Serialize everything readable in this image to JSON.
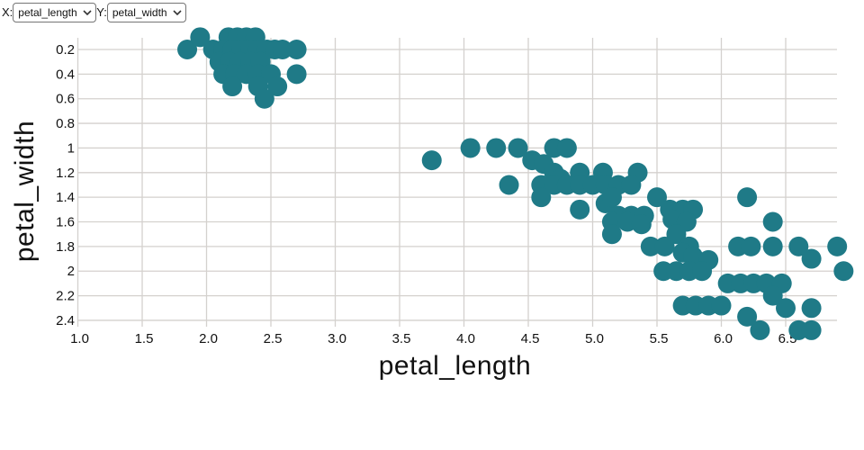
{
  "controls": {
    "x_label": "X:",
    "y_label": "Y:",
    "x_select": {
      "value": "petal_length"
    },
    "y_select": {
      "value": "petal_width"
    }
  },
  "chart_data": {
    "type": "scatter",
    "xlabel": "petal_length",
    "ylabel": "petal_width",
    "x_tick_values": [
      1.0,
      1.5,
      2.0,
      2.5,
      3.0,
      3.5,
      4.0,
      4.5,
      5.0,
      5.5,
      6.0,
      6.5
    ],
    "x_tick_labels": [
      "1.0",
      "1.5",
      "2.0",
      "2.5",
      "3.0",
      "3.5",
      "4.0",
      "4.5",
      "5.0",
      "5.5",
      "6.0",
      "6.5"
    ],
    "y_tick_values": [
      0.2,
      0.4,
      0.6,
      0.8,
      1.0,
      1.2,
      1.4,
      1.6,
      1.8,
      2.0,
      2.2,
      2.4
    ],
    "y_tick_labels": [
      "0.2",
      "0.4",
      "0.6",
      "0.8",
      "1",
      "1.2",
      "1.4",
      "1.6",
      "1.8",
      "2",
      "2.2",
      "2.4"
    ],
    "x_range": [
      1.0,
      6.95
    ],
    "y_range": [
      0.1,
      2.5
    ],
    "y_axis_inverted": true,
    "grid_on": true,
    "legend": "none",
    "marker_color": "#1f7a87",
    "grid_color": "#d4d1ce",
    "text_color": "#111111",
    "marker_radius_px": 11,
    "points": [
      [
        1.95,
        0.1
      ],
      [
        2.17,
        0.1
      ],
      [
        2.24,
        0.1
      ],
      [
        2.31,
        0.1
      ],
      [
        2.38,
        0.1
      ],
      [
        1.85,
        0.2
      ],
      [
        2.05,
        0.2
      ],
      [
        2.13,
        0.2
      ],
      [
        2.2,
        0.2
      ],
      [
        2.27,
        0.2
      ],
      [
        2.34,
        0.2
      ],
      [
        2.4,
        0.2
      ],
      [
        2.47,
        0.2
      ],
      [
        2.53,
        0.2
      ],
      [
        2.59,
        0.2
      ],
      [
        2.7,
        0.2
      ],
      [
        2.1,
        0.3
      ],
      [
        2.18,
        0.3
      ],
      [
        2.26,
        0.3
      ],
      [
        2.34,
        0.3
      ],
      [
        2.42,
        0.3
      ],
      [
        2.13,
        0.4
      ],
      [
        2.22,
        0.4
      ],
      [
        2.31,
        0.4
      ],
      [
        2.4,
        0.4
      ],
      [
        2.5,
        0.4
      ],
      [
        2.7,
        0.4
      ],
      [
        2.2,
        0.5
      ],
      [
        2.4,
        0.5
      ],
      [
        2.55,
        0.5
      ],
      [
        2.45,
        0.6
      ],
      [
        3.75,
        1.1
      ],
      [
        4.05,
        1.0
      ],
      [
        4.25,
        1.0
      ],
      [
        4.42,
        1.0
      ],
      [
        4.7,
        1.0
      ],
      [
        4.8,
        1.0
      ],
      [
        4.53,
        1.1
      ],
      [
        4.62,
        1.13
      ],
      [
        4.7,
        1.2
      ],
      [
        4.9,
        1.2
      ],
      [
        5.08,
        1.2
      ],
      [
        5.35,
        1.2
      ],
      [
        4.75,
        1.25
      ],
      [
        4.35,
        1.3
      ],
      [
        4.6,
        1.3
      ],
      [
        4.7,
        1.3
      ],
      [
        4.8,
        1.3
      ],
      [
        4.9,
        1.3
      ],
      [
        5.0,
        1.3
      ],
      [
        5.1,
        1.3
      ],
      [
        5.2,
        1.3
      ],
      [
        5.3,
        1.3
      ],
      [
        4.6,
        1.4
      ],
      [
        5.1,
        1.45
      ],
      [
        5.15,
        1.4
      ],
      [
        5.5,
        1.4
      ],
      [
        6.2,
        1.4
      ],
      [
        4.9,
        1.5
      ],
      [
        5.2,
        1.55
      ],
      [
        5.3,
        1.55
      ],
      [
        5.4,
        1.55
      ],
      [
        5.6,
        1.5
      ],
      [
        5.7,
        1.5
      ],
      [
        5.78,
        1.5
      ],
      [
        5.15,
        1.6
      ],
      [
        5.27,
        1.6
      ],
      [
        5.38,
        1.62
      ],
      [
        5.62,
        1.58
      ],
      [
        5.73,
        1.6
      ],
      [
        6.4,
        1.6
      ],
      [
        5.15,
        1.7
      ],
      [
        5.65,
        1.7
      ],
      [
        5.45,
        1.8
      ],
      [
        5.56,
        1.8
      ],
      [
        5.75,
        1.8
      ],
      [
        6.13,
        1.8
      ],
      [
        6.23,
        1.8
      ],
      [
        6.4,
        1.8
      ],
      [
        6.6,
        1.8
      ],
      [
        6.9,
        1.8
      ],
      [
        5.7,
        1.85
      ],
      [
        5.78,
        1.88
      ],
      [
        5.9,
        1.91
      ],
      [
        6.7,
        1.9
      ],
      [
        5.55,
        2.0
      ],
      [
        5.65,
        2.0
      ],
      [
        5.75,
        2.0
      ],
      [
        5.85,
        2.0
      ],
      [
        6.95,
        2.0
      ],
      [
        6.05,
        2.1
      ],
      [
        6.15,
        2.1
      ],
      [
        6.25,
        2.1
      ],
      [
        6.35,
        2.1
      ],
      [
        6.47,
        2.1
      ],
      [
        6.4,
        2.2
      ],
      [
        5.7,
        2.28
      ],
      [
        5.8,
        2.28
      ],
      [
        5.9,
        2.28
      ],
      [
        6.0,
        2.28
      ],
      [
        6.5,
        2.3
      ],
      [
        6.7,
        2.3
      ],
      [
        6.2,
        2.37
      ],
      [
        6.3,
        2.48
      ],
      [
        6.6,
        2.48
      ],
      [
        6.7,
        2.48
      ]
    ]
  }
}
